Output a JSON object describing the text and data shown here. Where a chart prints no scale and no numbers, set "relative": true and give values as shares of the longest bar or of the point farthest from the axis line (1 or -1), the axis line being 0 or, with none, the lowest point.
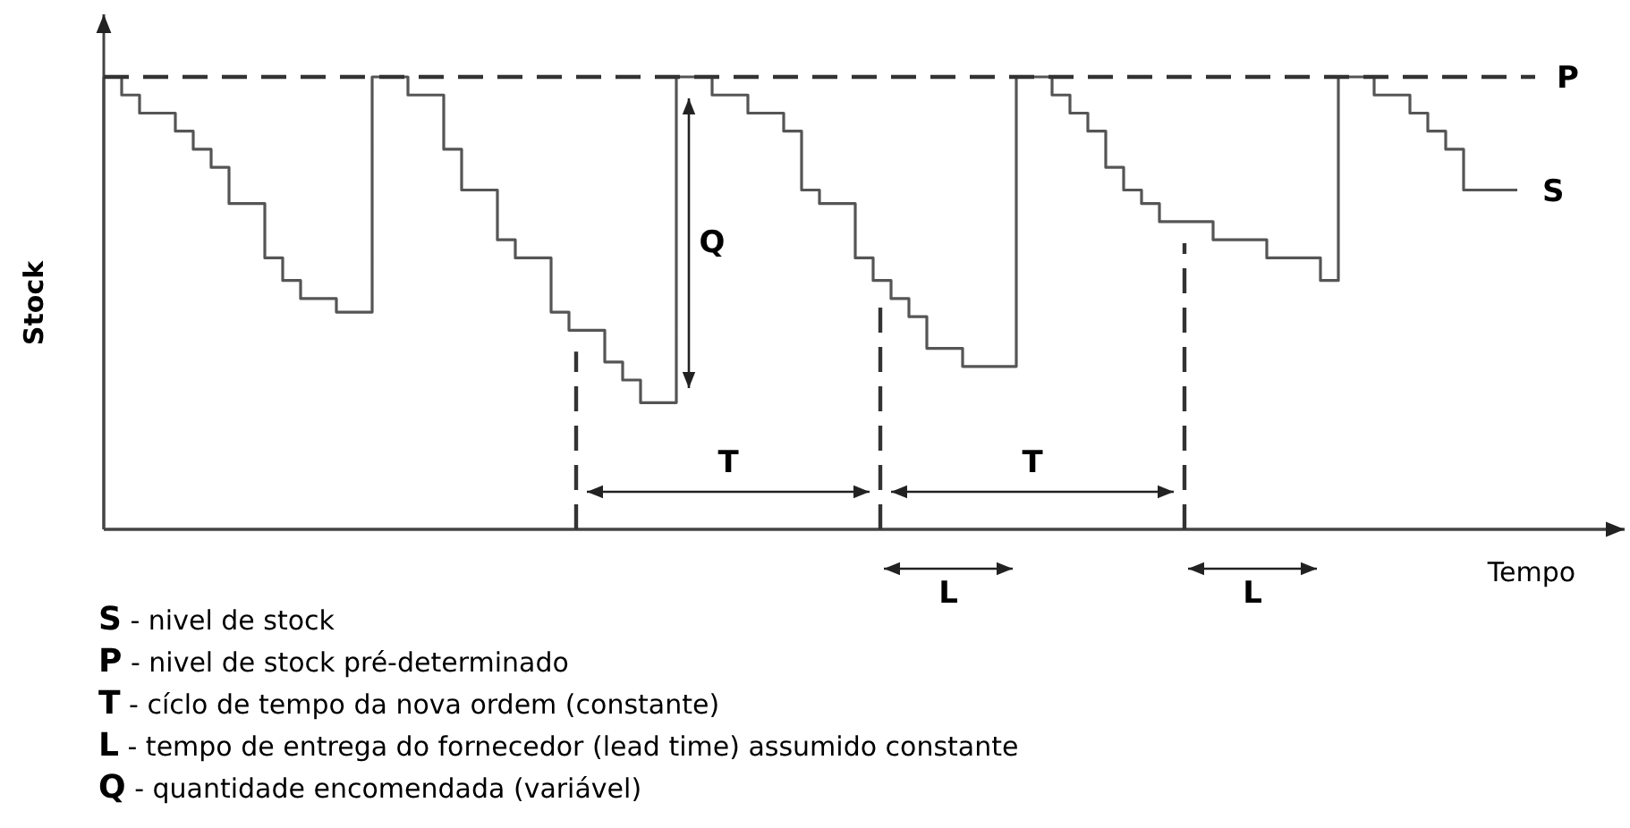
{
  "chart_data": {
    "type": "step",
    "relative": true,
    "xlabel": "Tempo",
    "ylabel": "Stock",
    "line_style": "solid",
    "marker": "none",
    "categories": [
      null,
      null,
      null,
      null,
      null,
      null,
      null,
      null,
      null,
      null,
      null,
      null,
      null,
      null,
      null,
      null,
      null,
      null,
      null,
      null,
      null,
      null,
      null,
      null,
      null,
      null,
      null,
      null,
      null,
      null,
      null,
      null,
      null,
      null,
      null,
      null,
      null,
      null,
      null,
      null,
      null,
      null,
      null,
      null,
      null,
      null,
      null,
      null,
      null,
      null,
      null,
      null,
      null,
      null,
      null,
      null,
      null,
      null,
      null,
      null,
      null,
      null,
      null,
      null,
      null,
      null,
      null,
      null,
      null,
      null,
      null,
      null,
      null,
      null,
      null,
      null,
      null,
      null,
      null,
      null
    ],
    "series": [
      {
        "color": "#555555",
        "values": [
          1,
          0.96,
          0.92,
          0.92,
          0.88,
          0.84,
          0.8,
          0.72,
          0.72,
          0.6,
          0.55,
          0.51,
          0.51,
          0.48,
          0.48,
          1,
          1,
          0.96,
          0.96,
          0.84,
          0.75,
          0.75,
          0.64,
          0.6,
          0.6,
          0.48,
          0.44,
          0.44,
          0.37,
          0.33,
          0.28,
          0.28,
          1,
          1,
          0.96,
          0.96,
          0.92,
          0.92,
          0.88,
          0.75,
          0.72,
          0.72,
          0.6,
          0.55,
          0.51,
          0.47,
          0.4,
          0.4,
          0.36,
          0.36,
          0.36,
          1,
          1,
          0.96,
          0.92,
          0.88,
          0.8,
          0.75,
          0.72,
          0.68,
          0.68,
          0.68,
          0.64,
          0.64,
          0.64,
          0.6,
          0.6,
          0.6,
          0.55,
          1,
          1,
          0.96,
          0.96,
          0.92,
          0.88,
          0.84,
          0.75,
          0.75,
          0.75,
          0.75
        ]
      }
    ],
    "ref_lines": [
      {
        "axis": "y",
        "value": 1,
        "label": "P",
        "line_style": "dashed",
        "color": "#333333"
      }
    ],
    "annotations": [
      "S",
      "Q",
      "T",
      "T",
      "L",
      "L",
      "S - nivel de stock",
      "P - nivel de stock pré-determinado",
      "T - cíclo de tempo da nova ordem (constante)",
      "L - tempo de entrega do fornecedor (lead time) assumido constante",
      "Q - quantidade encomendada (variável)"
    ]
  }
}
